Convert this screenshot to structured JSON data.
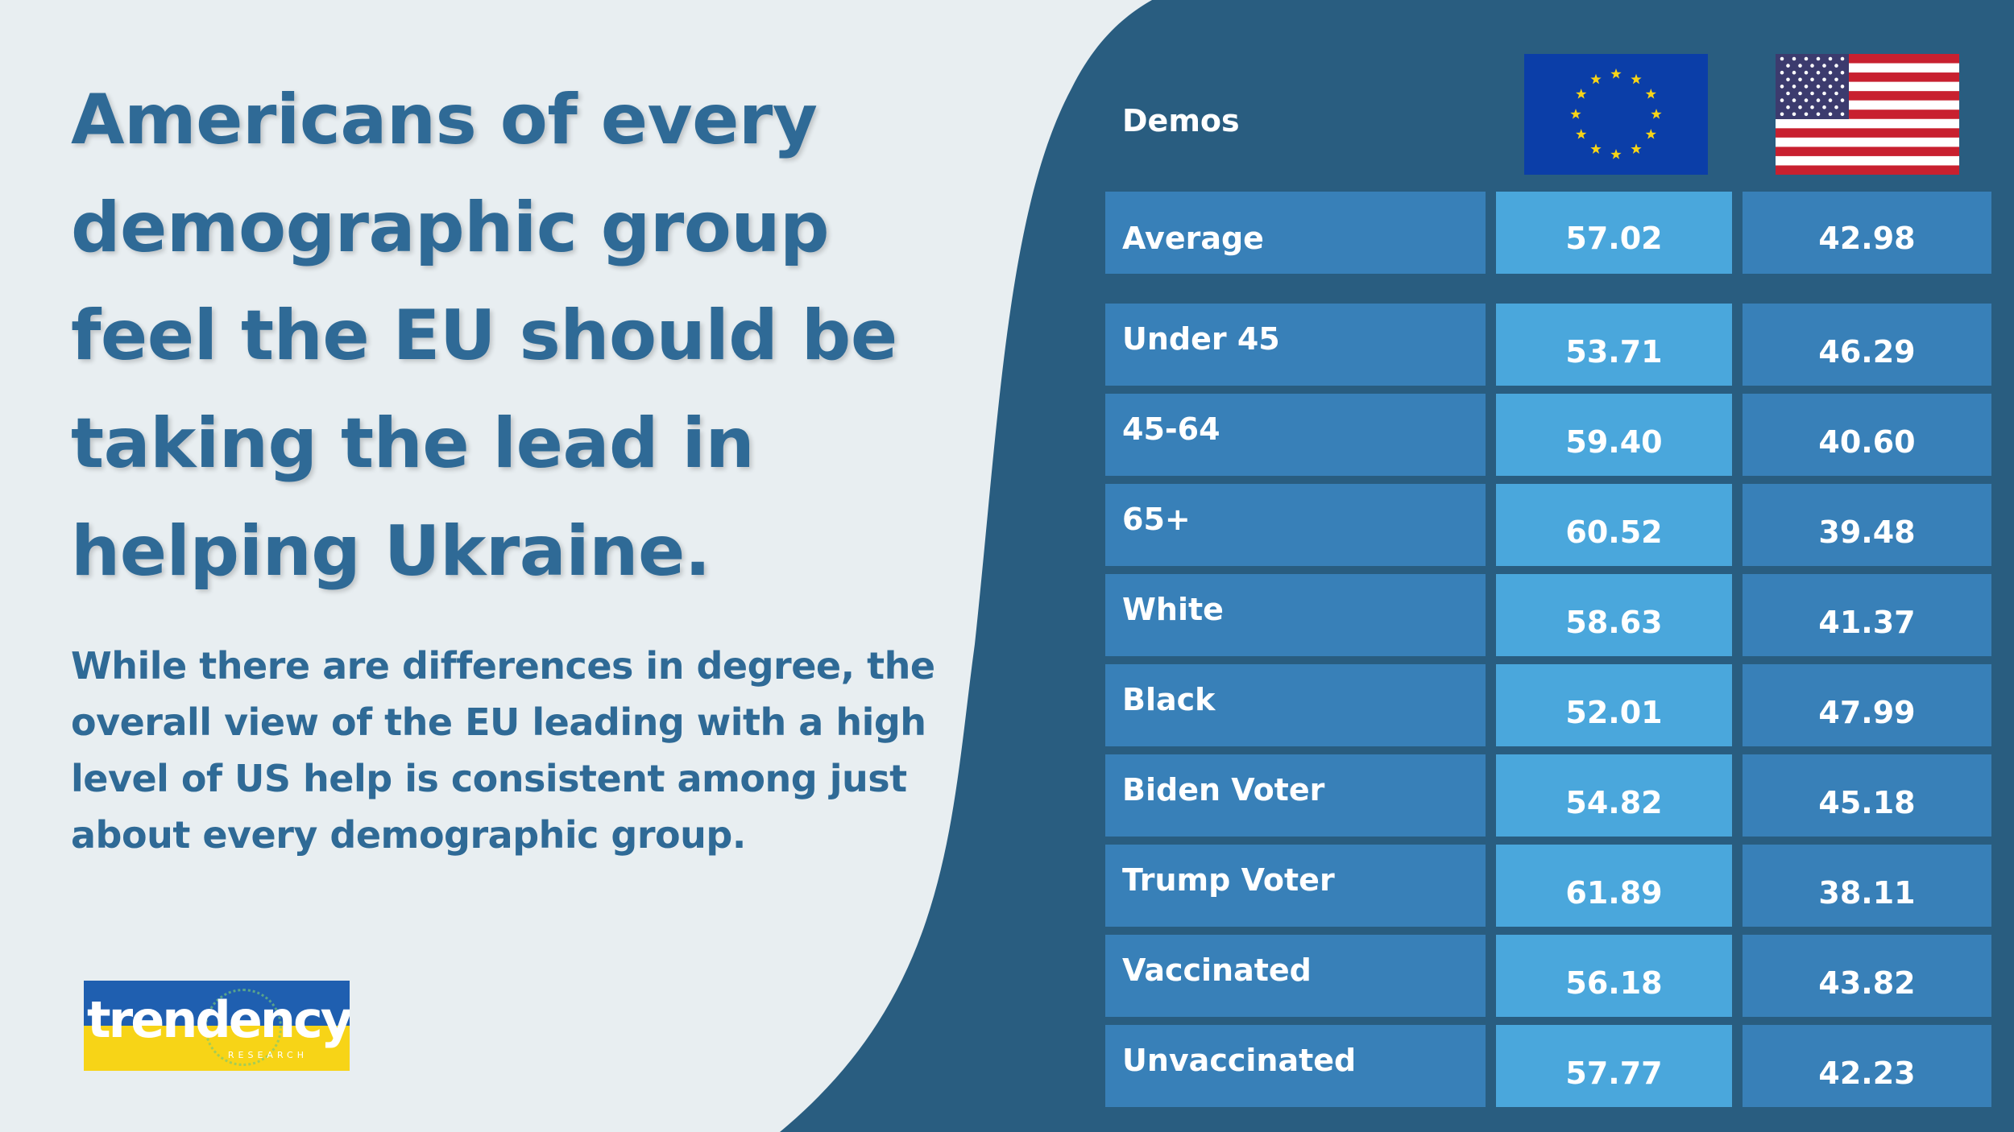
{
  "headline": "Americans of every demographic group feel the EU should be taking the lead in helping Ukraine.",
  "subtext": "While there are differences in degree, the overall view of the EU leading with a high level of US help is consistent among just about every demographic group.",
  "logo": {
    "word": "trendency",
    "sub": "RESEARCH"
  },
  "table": {
    "header_label": "Demos",
    "columns": [
      "eu-flag-icon",
      "us-flag-icon"
    ],
    "rows": [
      {
        "label": "Average",
        "eu": "57.02",
        "us": "42.98"
      },
      {
        "label": "Under 45",
        "eu": "53.71",
        "us": "46.29"
      },
      {
        "label": "45-64",
        "eu": "59.40",
        "us": "40.60"
      },
      {
        "label": "65+",
        "eu": "60.52",
        "us": "39.48"
      },
      {
        "label": "White",
        "eu": "58.63",
        "us": "41.37"
      },
      {
        "label": "Black",
        "eu": "52.01",
        "us": "47.99"
      },
      {
        "label": "Biden Voter",
        "eu": "54.82",
        "us": "45.18"
      },
      {
        "label": "Trump Voter",
        "eu": "61.89",
        "us": "38.11"
      },
      {
        "label": "Vaccinated",
        "eu": "56.18",
        "us": "43.82"
      },
      {
        "label": "Unvaccinated",
        "eu": "57.77",
        "us": "42.23"
      }
    ]
  },
  "colors": {
    "panel_bg": "#295d80",
    "left_bg": "#e8eef1",
    "text_blue": "#2f6a96",
    "cell_dark": "#3880b8",
    "cell_light": "#4aa7dc"
  }
}
